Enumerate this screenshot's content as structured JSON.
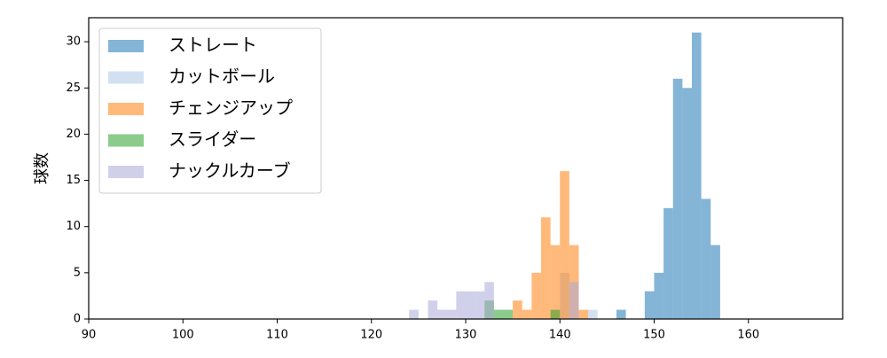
{
  "chart_data": {
    "type": "histogram",
    "ylabel": "球数",
    "xlim": [
      90,
      170
    ],
    "ylim": [
      0,
      32.6
    ],
    "xticks": [
      90,
      100,
      110,
      120,
      130,
      140,
      150,
      160
    ],
    "yticks": [
      0,
      5,
      10,
      15,
      20,
      25,
      30
    ],
    "legend": "upper left",
    "series": [
      {
        "name": "ストレート",
        "color": "#1f77b4",
        "bins": [
          146,
          147,
          148,
          149,
          150,
          151,
          152,
          153,
          154,
          155,
          156,
          157
        ],
        "values": [
          1,
          0,
          0,
          3,
          5,
          12,
          26,
          25,
          31,
          13,
          8
        ]
      },
      {
        "name": "カットボール",
        "color": "#aec7e8",
        "bins": [
          140,
          141,
          142,
          143,
          144
        ],
        "values": [
          5,
          0,
          0,
          1
        ]
      },
      {
        "name": "チェンジアップ",
        "color": "#ff7f0e",
        "bins": [
          135,
          136,
          137,
          138,
          139,
          140,
          141,
          142,
          143
        ],
        "values": [
          2,
          1,
          5,
          11,
          8,
          16,
          8,
          1
        ]
      },
      {
        "name": "スライダー",
        "color": "#2ca02c",
        "bins": [
          132,
          133,
          134,
          135,
          136,
          137,
          138,
          139,
          140
        ],
        "values": [
          2,
          1,
          1,
          0,
          0,
          0,
          0,
          1
        ]
      },
      {
        "name": "ナックルカーブ",
        "color": "#aaaad8",
        "bins": [
          124,
          125,
          126,
          127,
          128,
          129,
          130,
          131,
          132,
          133,
          134,
          135,
          136,
          137,
          138,
          139,
          140,
          141,
          142
        ],
        "values": [
          1,
          0,
          2,
          1,
          1,
          3,
          3,
          3,
          4,
          0,
          0,
          0,
          0,
          0,
          0,
          0,
          0,
          4
        ]
      }
    ]
  }
}
